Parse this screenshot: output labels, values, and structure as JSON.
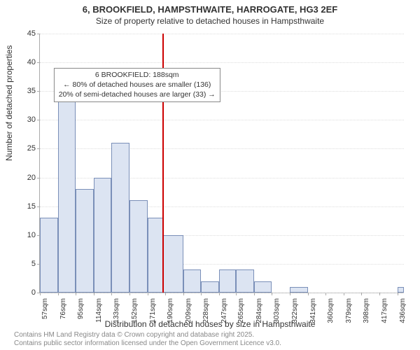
{
  "title": "6, BROOKFIELD, HAMPSTHWAITE, HARROGATE, HG3 2EF",
  "subtitle": "Size of property relative to detached houses in Hampsthwaite",
  "ylabel": "Number of detached properties",
  "xlabel": "Distribution of detached houses by size in Hampsthwaite",
  "footer_line1": "Contains HM Land Registry data © Crown copyright and database right 2025.",
  "footer_line2": "Contains public sector information licensed under the Open Government Licence v3.0.",
  "chart": {
    "type": "histogram",
    "ylim": [
      0,
      45
    ],
    "yticks": [
      0,
      5,
      10,
      15,
      20,
      25,
      30,
      35,
      40,
      45
    ],
    "xlim": [
      57,
      443
    ],
    "xticks": [
      57,
      76,
      95,
      114,
      133,
      152,
      171,
      190,
      209,
      228,
      247,
      265,
      284,
      303,
      322,
      341,
      360,
      379,
      398,
      417,
      436
    ],
    "xtick_suffix": "sqm",
    "bar_color": "#dce4f2",
    "bar_border_color": "#7a8fb8",
    "grid_color": "#dddddd",
    "axis_color": "#aaaaaa",
    "background_color": "#ffffff",
    "bars": [
      {
        "x0": 57,
        "x1": 76,
        "y": 13
      },
      {
        "x0": 76,
        "x1": 95,
        "y": 36
      },
      {
        "x0": 95,
        "x1": 114,
        "y": 18
      },
      {
        "x0": 114,
        "x1": 133,
        "y": 20
      },
      {
        "x0": 133,
        "x1": 152,
        "y": 26
      },
      {
        "x0": 152,
        "x1": 171,
        "y": 16
      },
      {
        "x0": 171,
        "x1": 188,
        "y": 13
      },
      {
        "x0": 188,
        "x1": 209,
        "y": 10
      },
      {
        "x0": 209,
        "x1": 228,
        "y": 4
      },
      {
        "x0": 228,
        "x1": 247,
        "y": 2
      },
      {
        "x0": 247,
        "x1": 265,
        "y": 4
      },
      {
        "x0": 265,
        "x1": 284,
        "y": 4
      },
      {
        "x0": 284,
        "x1": 303,
        "y": 2
      },
      {
        "x0": 303,
        "x1": 322,
        "y": 0
      },
      {
        "x0": 322,
        "x1": 341,
        "y": 1
      },
      {
        "x0": 341,
        "x1": 360,
        "y": 0
      },
      {
        "x0": 360,
        "x1": 379,
        "y": 0
      },
      {
        "x0": 379,
        "x1": 398,
        "y": 0
      },
      {
        "x0": 398,
        "x1": 417,
        "y": 0
      },
      {
        "x0": 417,
        "x1": 436,
        "y": 0
      },
      {
        "x0": 436,
        "x1": 443,
        "y": 1
      }
    ],
    "reference_line": {
      "x": 188,
      "color": "#cc0000",
      "width": 2
    },
    "annotation": {
      "line1": "6 BROOKFIELD: 188sqm",
      "line2": "← 80% of detached houses are smaller (136)",
      "line3": "20% of semi-detached houses are larger (33) →",
      "x_center": 160,
      "y_top": 39,
      "border_color": "#888888",
      "background": "#ffffff",
      "fontsize": 10.5
    }
  }
}
